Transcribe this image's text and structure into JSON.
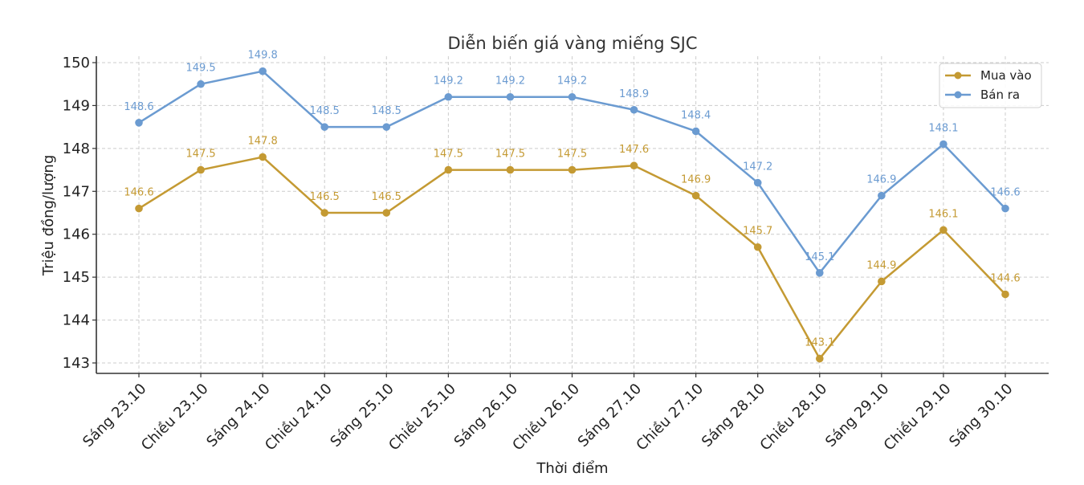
{
  "chart_data": {
    "type": "line",
    "title": "Diễn biến giá vàng miếng SJC",
    "xlabel": "Thời điểm",
    "ylabel": "Triệu đồng/lượng",
    "categories": [
      "Sáng 23.10",
      "Chiều 23.10",
      "Sáng 24.10",
      "Chiều 24.10",
      "Sáng 25.10",
      "Chiều 25.10",
      "Sáng 26.10",
      "Chiều 26.10",
      "Sáng 27.10",
      "Chiều 27.10",
      "Sáng 28.10",
      "Chiều 28.10",
      "Sáng 29.10",
      "Chiều 29.10",
      "Sáng 30.10"
    ],
    "series": [
      {
        "name": "Mua vào",
        "color": "#c49a33",
        "values": [
          146.6,
          147.5,
          147.8,
          146.5,
          146.5,
          147.5,
          147.5,
          147.5,
          147.6,
          146.9,
          145.7,
          143.1,
          144.9,
          146.1,
          144.6
        ]
      },
      {
        "name": "Bán ra",
        "color": "#6b9bd1",
        "values": [
          148.6,
          149.5,
          149.8,
          148.5,
          148.5,
          149.2,
          149.2,
          149.2,
          148.9,
          148.4,
          147.2,
          145.1,
          146.9,
          148.1,
          146.6
        ]
      }
    ],
    "yticks": [
      143,
      144,
      145,
      146,
      147,
      148,
      149,
      150
    ],
    "ylim": [
      142.75,
      150.1
    ],
    "grid": true,
    "legend_position": "upper right"
  }
}
